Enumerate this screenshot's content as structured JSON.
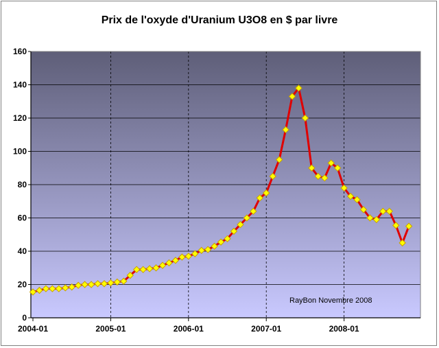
{
  "chart_data": {
    "type": "line",
    "title": "Prix de l'oxyde d'Uranium U3O8 en $ par livre",
    "xlabel": "",
    "ylabel": "",
    "ylim": [
      0,
      160
    ],
    "yticks": [
      "0",
      "20",
      "40",
      "60",
      "80",
      "100",
      "120",
      "140",
      "160"
    ],
    "xticks": [
      "2004-01",
      "2005-01",
      "2006-01",
      "2007-01",
      "2008-01"
    ],
    "grid": true,
    "annotation": "RayBon Novembre 2008",
    "colors": {
      "line": "#e00000",
      "marker_fill": "#ffff00",
      "marker_stroke": "#c8a000",
      "bg_top": "#5e5e78",
      "bg_bottom": "#c9c9ff"
    },
    "x": [
      "2004-01",
      "2004-02",
      "2004-03",
      "2004-04",
      "2004-05",
      "2004-06",
      "2004-07",
      "2004-08",
      "2004-09",
      "2004-10",
      "2004-11",
      "2004-12",
      "2005-01",
      "2005-02",
      "2005-03",
      "2005-04",
      "2005-05",
      "2005-06",
      "2005-07",
      "2005-08",
      "2005-09",
      "2005-10",
      "2005-11",
      "2005-12",
      "2006-01",
      "2006-02",
      "2006-03",
      "2006-04",
      "2006-05",
      "2006-06",
      "2006-07",
      "2006-08",
      "2006-09",
      "2006-10",
      "2006-11",
      "2006-12",
      "2007-01",
      "2007-02",
      "2007-03",
      "2007-04",
      "2007-05",
      "2007-06",
      "2007-07",
      "2007-08",
      "2007-09",
      "2007-10",
      "2007-11",
      "2007-12",
      "2008-01",
      "2008-02",
      "2008-03",
      "2008-04",
      "2008-05",
      "2008-06",
      "2008-07",
      "2008-08",
      "2008-09",
      "2008-10",
      "2008-11"
    ],
    "series": [
      {
        "values": [
          15.5,
          16.5,
          17.5,
          17.5,
          17.5,
          18,
          18.5,
          19.5,
          20,
          20,
          20.5,
          20.5,
          21,
          21.5,
          22,
          25.5,
          29,
          29,
          29.5,
          30,
          31.5,
          33,
          34.5,
          36.5,
          37,
          38.5,
          40.5,
          41,
          43,
          45.5,
          47.5,
          52,
          56,
          60,
          64,
          72,
          75,
          85,
          95,
          113,
          133,
          138,
          120,
          90,
          85,
          84,
          93,
          90,
          78,
          73,
          71,
          65,
          60,
          59,
          64,
          64,
          55.5,
          45,
          55
        ]
      }
    ]
  }
}
